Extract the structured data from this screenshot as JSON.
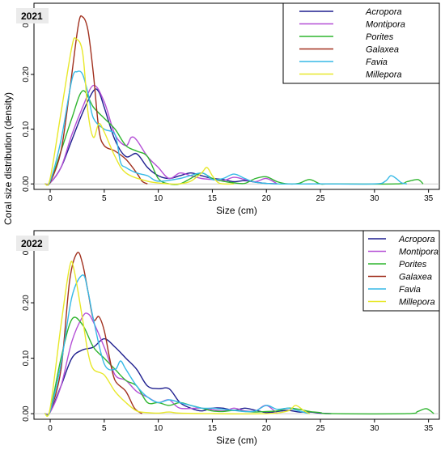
{
  "y_axis_label": "Coral size distribution (density)",
  "colors": {
    "Acropora": "#1f1f8f",
    "Montipora": "#b44fd6",
    "Porites": "#2fb52f",
    "Galaxea": "#a1301e",
    "Favia": "#36b9e6",
    "Millepora": "#e8e82a"
  },
  "chart_data": [
    {
      "type": "line",
      "title": "2021",
      "xlabel": "Size (cm)",
      "ylabel": "Coral size distribution (density)",
      "xlim": [
        -1.5,
        36
      ],
      "ylim": [
        -0.01,
        0.33
      ],
      "x_ticks": [
        0,
        5,
        10,
        15,
        20,
        25,
        30,
        35
      ],
      "y_ticks": [
        0.0,
        0.1,
        0.2,
        0.3
      ],
      "y_tick_labels": [
        "0.00",
        "0.10",
        "0.20",
        "0.30"
      ],
      "legend_position": "top-right",
      "grid": false,
      "series": [
        {
          "name": "Acropora",
          "x": [
            -0.5,
            0,
            1,
            2,
            3,
            4,
            4.5,
            5,
            6,
            7,
            8,
            9,
            10,
            11,
            12,
            13,
            14,
            15,
            16,
            17,
            18,
            19,
            20,
            21
          ],
          "y": [
            0,
            0.002,
            0.03,
            0.08,
            0.13,
            0.17,
            0.168,
            0.14,
            0.08,
            0.05,
            0.055,
            0.03,
            0.015,
            0.01,
            0.015,
            0.02,
            0.015,
            0.01,
            0.008,
            0.004,
            0.006,
            0.003,
            0.001,
            0
          ]
        },
        {
          "name": "Montipora",
          "x": [
            -0.5,
            0,
            1,
            2,
            3,
            4,
            5,
            6,
            7,
            7.5,
            8,
            9,
            10,
            11,
            12,
            13,
            14,
            15,
            16,
            17,
            18,
            19,
            20,
            21
          ],
          "y": [
            0,
            0.002,
            0.03,
            0.09,
            0.14,
            0.18,
            0.15,
            0.09,
            0.07,
            0.085,
            0.08,
            0.05,
            0.03,
            0.01,
            0.02,
            0.015,
            0.01,
            0.008,
            0.006,
            0.012,
            0.008,
            0.004,
            0.01,
            0
          ]
        },
        {
          "name": "Porites",
          "x": [
            -0.5,
            0,
            1,
            2,
            3,
            4,
            5,
            6,
            7,
            8,
            9,
            10,
            11,
            12,
            13,
            14,
            15,
            16,
            17,
            18,
            19,
            20,
            21,
            22,
            23,
            24,
            25,
            26,
            32,
            33,
            34,
            34.5
          ],
          "y": [
            0,
            0.003,
            0.06,
            0.12,
            0.17,
            0.14,
            0.12,
            0.1,
            0.07,
            0.06,
            0.05,
            0.01,
            0,
            0,
            0.01,
            0.02,
            0.01,
            0.005,
            0.002,
            0.001,
            0.01,
            0.013,
            0.004,
            0,
            0.001,
            0.008,
            0,
            0,
            0,
            0.004,
            0.008,
            0
          ]
        },
        {
          "name": "Galaxea",
          "x": [
            -0.5,
            0,
            1,
            1.8,
            2.6,
            3,
            3.5,
            4,
            4.5,
            5,
            6,
            7,
            8,
            8.5,
            9
          ],
          "y": [
            0,
            0.003,
            0.06,
            0.17,
            0.29,
            0.305,
            0.28,
            0.2,
            0.1,
            0.07,
            0.06,
            0.045,
            0.02,
            0.005,
            0
          ]
        },
        {
          "name": "Favia",
          "x": [
            -0.5,
            0,
            1,
            2,
            2.5,
            3,
            3.5,
            4,
            5,
            6,
            6.5,
            7,
            8,
            9,
            10,
            12,
            14,
            15,
            16,
            17,
            18,
            19,
            21,
            25,
            30,
            31,
            31.5,
            32,
            32.5,
            33
          ],
          "y": [
            0,
            0.005,
            0.08,
            0.19,
            0.205,
            0.2,
            0.165,
            0.12,
            0.1,
            0.09,
            0.04,
            0.03,
            0.02,
            0.015,
            0.005,
            0.01,
            0.02,
            0.008,
            0.01,
            0.018,
            0.01,
            0.003,
            0,
            0,
            0,
            0.005,
            0.015,
            0.01,
            0.002,
            0
          ]
        },
        {
          "name": "Millepora",
          "x": [
            -0.5,
            0,
            1,
            2,
            2.4,
            3,
            3.5,
            4,
            4.5,
            5,
            6,
            7,
            9,
            11,
            12,
            13,
            14,
            14.5,
            15,
            15.5,
            16,
            17
          ],
          "y": [
            0,
            0.01,
            0.13,
            0.25,
            0.265,
            0.24,
            0.13,
            0.085,
            0.11,
            0.095,
            0.05,
            0.02,
            0.005,
            0,
            0,
            0.005,
            0.02,
            0.03,
            0.015,
            0.003,
            0,
            0
          ]
        }
      ]
    },
    {
      "type": "line",
      "title": "2022",
      "xlabel": "Size (cm)",
      "ylabel": "Coral size distribution (density)",
      "xlim": [
        -1.5,
        36
      ],
      "ylim": [
        -0.01,
        0.33
      ],
      "x_ticks": [
        0,
        5,
        10,
        15,
        20,
        25,
        30,
        35
      ],
      "y_ticks": [
        0.0,
        0.1,
        0.2,
        0.3
      ],
      "y_tick_labels": [
        "0.00",
        "0.10",
        "0.20",
        "0.30"
      ],
      "legend_position": "top-right",
      "grid": false,
      "series": [
        {
          "name": "Acropora",
          "x": [
            -0.5,
            0,
            1,
            2,
            3,
            4,
            5,
            6,
            7,
            8,
            9,
            10,
            11,
            12,
            13,
            14,
            15,
            16,
            17,
            18,
            19,
            20,
            21,
            22,
            23,
            24,
            25,
            26
          ],
          "y": [
            0,
            0.003,
            0.05,
            0.1,
            0.115,
            0.12,
            0.135,
            0.12,
            0.1,
            0.08,
            0.05,
            0.045,
            0.045,
            0.02,
            0.01,
            0.005,
            0.01,
            0.01,
            0.006,
            0.01,
            0.006,
            0.002,
            0.004,
            0.006,
            0.003,
            0.003,
            0.001,
            0
          ]
        },
        {
          "name": "Montipora",
          "x": [
            -0.5,
            0,
            1,
            2,
            3,
            3.5,
            4,
            5,
            6,
            7,
            8,
            9,
            10,
            11,
            12,
            14,
            16,
            17,
            18,
            19,
            20,
            21
          ],
          "y": [
            0,
            0.003,
            0.05,
            0.13,
            0.175,
            0.18,
            0.165,
            0.12,
            0.07,
            0.06,
            0.04,
            0.03,
            0.02,
            0.025,
            0.01,
            0.01,
            0.005,
            0.01,
            0.005,
            0.005,
            0.015,
            0
          ]
        },
        {
          "name": "Porites",
          "x": [
            -0.5,
            0,
            1,
            2,
            3,
            4,
            5,
            6,
            7,
            8,
            9,
            10,
            11,
            12,
            13,
            14,
            15,
            16,
            17,
            18,
            19,
            20,
            21,
            22,
            23,
            24,
            25,
            26,
            33,
            34,
            34.8,
            35.5
          ],
          "y": [
            0,
            0.005,
            0.1,
            0.17,
            0.16,
            0.12,
            0.1,
            0.08,
            0.06,
            0.05,
            0.02,
            0.02,
            0.015,
            0.02,
            0.015,
            0.01,
            0.005,
            0.004,
            0.006,
            0.004,
            0.003,
            0.004,
            0.005,
            0.01,
            0.008,
            0.004,
            0.002,
            0,
            0,
            0.004,
            0.009,
            0
          ]
        },
        {
          "name": "Galaxea",
          "x": [
            -0.5,
            0,
            1,
            1.8,
            2.5,
            3,
            3.5,
            4,
            4.5,
            5,
            5.5,
            6,
            7,
            7.8,
            8.5
          ],
          "y": [
            0,
            0.005,
            0.08,
            0.24,
            0.29,
            0.27,
            0.22,
            0.17,
            0.175,
            0.15,
            0.1,
            0.06,
            0.04,
            0.01,
            0
          ]
        },
        {
          "name": "Favia",
          "x": [
            -0.5,
            0,
            1,
            2,
            3,
            3.5,
            4,
            5,
            6,
            6.5,
            7,
            8,
            9,
            10,
            11,
            12,
            13,
            14,
            15,
            16,
            17,
            18,
            19,
            20,
            21,
            22,
            23,
            24
          ],
          "y": [
            0,
            0.005,
            0.09,
            0.21,
            0.25,
            0.22,
            0.17,
            0.09,
            0.08,
            0.095,
            0.08,
            0.05,
            0.03,
            0.02,
            0.025,
            0.02,
            0.015,
            0.01,
            0.01,
            0.008,
            0.006,
            0.004,
            0.005,
            0.015,
            0.008,
            0.01,
            0.005,
            0
          ]
        },
        {
          "name": "Millepora",
          "x": [
            -0.5,
            0,
            1,
            1.8,
            2.2,
            3,
            3.5,
            4,
            5,
            6,
            7,
            8,
            9,
            10,
            11,
            12,
            15,
            20,
            22,
            22.7,
            23.5,
            24
          ],
          "y": [
            0,
            0.01,
            0.16,
            0.265,
            0.26,
            0.17,
            0.11,
            0.08,
            0.07,
            0.04,
            0.02,
            0.005,
            0.002,
            0.001,
            0.003,
            0.001,
            0,
            0,
            0.005,
            0.015,
            0.005,
            0
          ]
        }
      ]
    }
  ]
}
